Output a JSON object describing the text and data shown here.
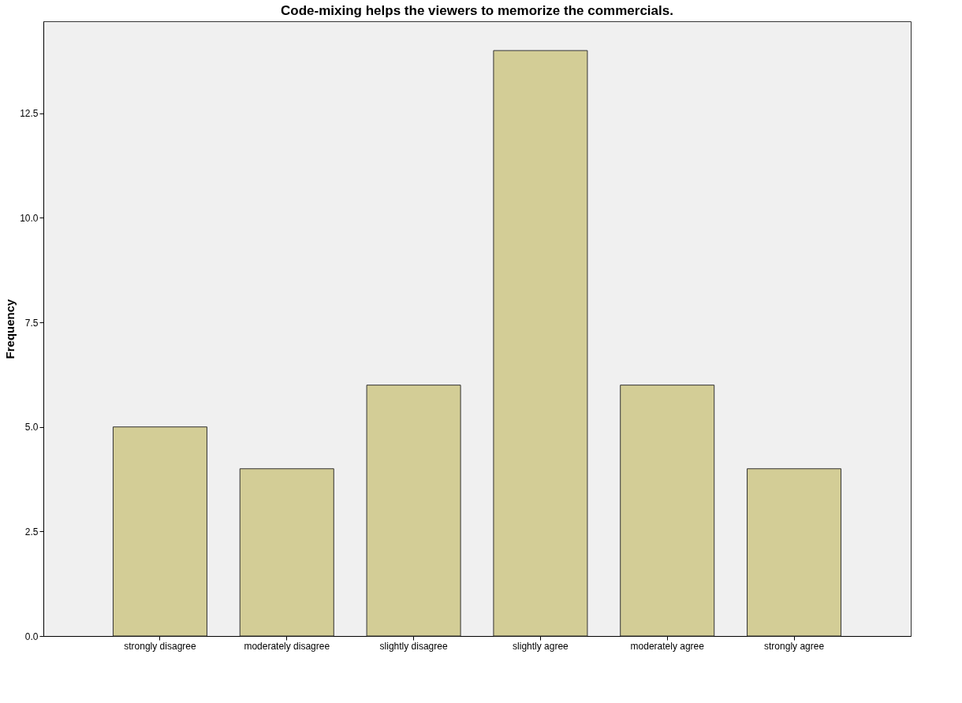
{
  "chart_data": {
    "type": "bar",
    "title": "Code-mixing helps the viewers to memorize the commercials.",
    "ylabel": "Frequency",
    "categories": [
      "strongly disagree",
      "moderately disagree",
      "slightly disagree",
      "slightly agree",
      "moderately agree",
      "strongly agree"
    ],
    "values": [
      5,
      4,
      6,
      14,
      6,
      4
    ],
    "color": "#d3cd96",
    "ylim": [
      0,
      14.7
    ],
    "yticks": [
      {
        "value": 0,
        "label": "0.0"
      },
      2.5,
      {
        "value": 5,
        "label": "5.0"
      },
      7.5,
      {
        "value": 10,
        "label": "10.0"
      },
      12.5
    ],
    "grid": false
  }
}
